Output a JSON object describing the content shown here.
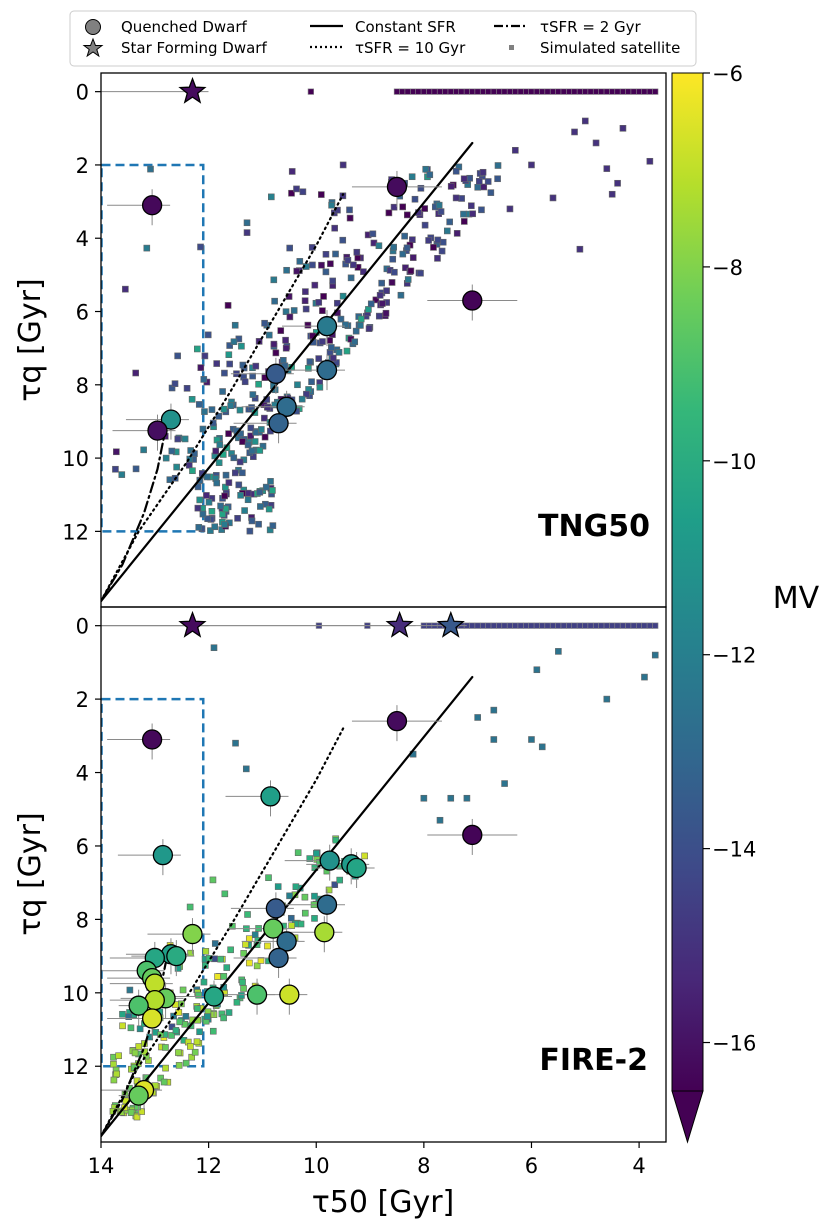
{
  "colormap": {
    "stops": [
      "#440154",
      "#482878",
      "#3e4a89",
      "#31688e",
      "#26828e",
      "#1f9e89",
      "#35b779",
      "#6ece58",
      "#b5de2b",
      "#fde725"
    ],
    "min": -16.5,
    "max": -6
  },
  "chart_data": {
    "type": "scatter",
    "xlabel": "τ50 [Gyr]",
    "ylabel": "τq [Gyr]",
    "xlim": [
      14,
      3.5
    ],
    "ylim": [
      13.9,
      -0.4
    ],
    "x_ticks": [
      14,
      12,
      10,
      8,
      6,
      4
    ],
    "y_ticks": [
      0,
      2,
      4,
      6,
      8,
      10,
      12
    ],
    "colorbar": {
      "label": "MV",
      "ticks": [
        -6,
        -8,
        -10,
        -12,
        -14,
        -16
      ],
      "tick_labels": [
        "−6",
        "−8",
        "−10",
        "−12",
        "−14",
        "−16"
      ],
      "extend": "min"
    },
    "legend": {
      "position": "top, outside",
      "entries": [
        {
          "label": "Quenched Dwarf",
          "marker": "circle"
        },
        {
          "label": "Constant SFR",
          "line": "solid"
        },
        {
          "label": "τSFR = 2 Gyr",
          "line": "dashdot"
        },
        {
          "label": "Star Forming Dwarf",
          "marker": "star"
        },
        {
          "label": "τSFR = 10 Gyr",
          "line": "dotted"
        },
        {
          "label": "Simulated satellite",
          "marker": "square"
        }
      ]
    },
    "reference_lines": {
      "constant_sfr": [
        [
          14,
          13.9
        ],
        [
          7.1,
          1.4
        ]
      ],
      "tau_sfr_10": [
        [
          14,
          13.9
        ],
        [
          13.3,
          12.0
        ],
        [
          12.4,
          10.1
        ],
        [
          11.6,
          8.2
        ],
        [
          10.8,
          6.2
        ],
        [
          10.0,
          4.2
        ],
        [
          9.5,
          2.8
        ]
      ],
      "tau_sfr_2": [
        [
          14,
          13.9
        ],
        [
          13.6,
          12.9
        ],
        [
          13.2,
          11.5
        ],
        [
          12.95,
          10.3
        ],
        [
          12.8,
          9.2
        ]
      ]
    },
    "selection_box": {
      "x": [
        14,
        12.1
      ],
      "y": [
        2,
        12
      ]
    },
    "panels": [
      {
        "name": "TNG50",
        "simulated_satellites_at_zero": {
          "x_from": 8.5,
          "x_to": 3.7,
          "extra_x": [
            10.1
          ],
          "mv": -16.5
        },
        "star_forming": [
          {
            "x": 12.3,
            "y": 0,
            "mv": -16.2
          }
        ],
        "quenched": [
          {
            "x": 13.05,
            "y": 3.1,
            "mv": -16.3
          },
          {
            "x": 8.5,
            "y": 2.6,
            "mv": -16.2
          },
          {
            "x": 7.1,
            "y": 5.7,
            "mv": -16.4
          },
          {
            "x": 9.8,
            "y": 6.4,
            "mv": -12.2
          },
          {
            "x": 10.75,
            "y": 7.7,
            "mv": -13.5
          },
          {
            "x": 9.8,
            "y": 7.6,
            "mv": -12.8
          },
          {
            "x": 10.55,
            "y": 8.6,
            "mv": -12.8
          },
          {
            "x": 10.7,
            "y": 9.05,
            "mv": -13.2
          },
          {
            "x": 12.7,
            "y": 8.95,
            "mv": -11.2
          },
          {
            "x": 12.95,
            "y": 9.25,
            "mv": -16.1
          }
        ],
        "label": "TNG50"
      },
      {
        "name": "FIRE-2",
        "simulated_satellites_at_zero": {
          "x_from": 8.0,
          "x_to": 3.7,
          "extra_x": [
            9.95,
            9.05
          ],
          "mv": -14.5
        },
        "star_forming": [
          {
            "x": 12.3,
            "y": 0,
            "mv": -16.2
          },
          {
            "x": 8.45,
            "y": 0,
            "mv": -15.2
          },
          {
            "x": 7.5,
            "y": 0,
            "mv": -13.6
          }
        ],
        "quenched": [
          {
            "x": 13.05,
            "y": 3.1,
            "mv": -16.3
          },
          {
            "x": 8.5,
            "y": 2.6,
            "mv": -16.2
          },
          {
            "x": 7.1,
            "y": 5.7,
            "mv": -16.4
          },
          {
            "x": 10.85,
            "y": 4.65,
            "mv": -10.6
          },
          {
            "x": 12.85,
            "y": 6.25,
            "mv": -10.9
          },
          {
            "x": 9.75,
            "y": 6.4,
            "mv": -11.2
          },
          {
            "x": 9.35,
            "y": 6.5,
            "mv": -10.8
          },
          {
            "x": 9.25,
            "y": 6.6,
            "mv": -10.4
          },
          {
            "x": 10.75,
            "y": 7.7,
            "mv": -13.5
          },
          {
            "x": 9.8,
            "y": 7.6,
            "mv": -12.8
          },
          {
            "x": 10.8,
            "y": 8.25,
            "mv": -8.5
          },
          {
            "x": 12.3,
            "y": 8.4,
            "mv": -8.0
          },
          {
            "x": 9.85,
            "y": 8.35,
            "mv": -7.4
          },
          {
            "x": 10.55,
            "y": 8.6,
            "mv": -12.8
          },
          {
            "x": 10.7,
            "y": 9.05,
            "mv": -13.2
          },
          {
            "x": 12.7,
            "y": 8.95,
            "mv": -10.6
          },
          {
            "x": 12.6,
            "y": 9.0,
            "mv": -10.1
          },
          {
            "x": 13.0,
            "y": 9.05,
            "mv": -10.3
          },
          {
            "x": 13.15,
            "y": 9.4,
            "mv": -9.0
          },
          {
            "x": 13.05,
            "y": 9.6,
            "mv": -8.5
          },
          {
            "x": 13.0,
            "y": 9.75,
            "mv": -7.0
          },
          {
            "x": 12.8,
            "y": 10.15,
            "mv": -8.5
          },
          {
            "x": 13.0,
            "y": 10.2,
            "mv": -7.2
          },
          {
            "x": 13.3,
            "y": 10.35,
            "mv": -9.0
          },
          {
            "x": 13.05,
            "y": 10.7,
            "mv": -6.6
          },
          {
            "x": 11.9,
            "y": 10.1,
            "mv": -10.3
          },
          {
            "x": 11.1,
            "y": 10.05,
            "mv": -9.0
          },
          {
            "x": 10.5,
            "y": 10.05,
            "mv": -6.8
          },
          {
            "x": 13.2,
            "y": 12.65,
            "mv": -6.5
          },
          {
            "x": 13.3,
            "y": 12.8,
            "mv": -8.5
          }
        ],
        "label": "FIRE-2"
      }
    ]
  }
}
